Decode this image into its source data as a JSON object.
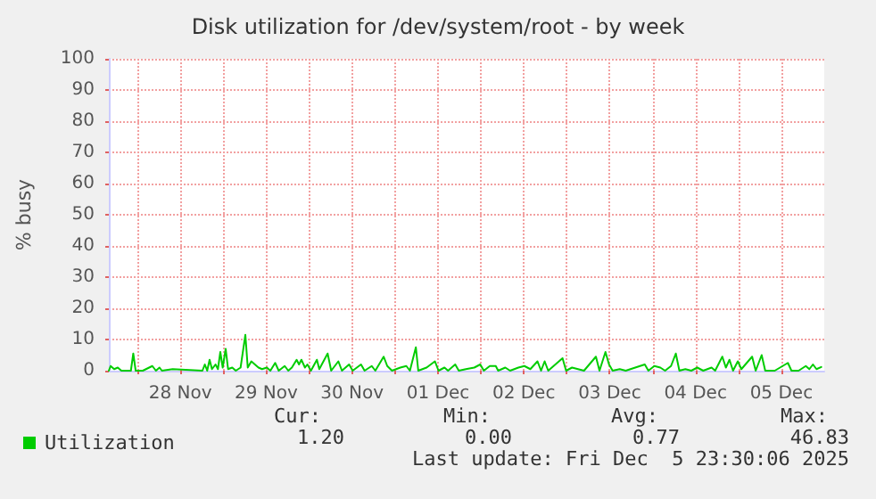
{
  "chart_data": {
    "type": "line",
    "title": "Disk utilization for /dev/system/root - by week",
    "ylabel": "% busy",
    "x": [
      "2025-11-27T16:00",
      "2025-11-27T16:30",
      "2025-11-27T17:30",
      "2025-11-27T18:30",
      "2025-11-27T19:30",
      "2025-11-27T22:10",
      "2025-11-27T22:50",
      "2025-11-27T23:30",
      "2025-11-28T01:30",
      "2025-11-28T04:10",
      "2025-11-28T05:10",
      "2025-11-28T06:10",
      "2025-11-28T06:50",
      "2025-11-28T09:50",
      "2025-11-28T18:10",
      "2025-11-28T18:50",
      "2025-11-28T19:30",
      "2025-11-28T20:10",
      "2025-11-28T20:50",
      "2025-11-28T21:50",
      "2025-11-28T22:30",
      "2025-11-28T23:10",
      "2025-11-28T23:50",
      "2025-11-29T00:40",
      "2025-11-29T01:20",
      "2025-11-29T02:30",
      "2025-11-29T03:30",
      "2025-11-29T04:50",
      "2025-11-29T06:10",
      "2025-11-29T06:50",
      "2025-11-29T07:50",
      "2025-11-29T08:50",
      "2025-11-29T09:50",
      "2025-11-29T10:50",
      "2025-11-29T12:10",
      "2025-11-29T13:10",
      "2025-11-29T14:30",
      "2025-11-29T15:30",
      "2025-11-29T17:10",
      "2025-11-29T18:10",
      "2025-11-29T19:10",
      "2025-11-29T20:30",
      "2025-11-29T21:10",
      "2025-11-29T21:50",
      "2025-11-29T22:50",
      "2025-11-29T23:30",
      "2025-11-30T00:30",
      "2025-11-30T02:10",
      "2025-11-30T02:50",
      "2025-11-30T05:10",
      "2025-11-30T06:10",
      "2025-11-30T08:10",
      "2025-11-30T09:10",
      "2025-11-30T11:10",
      "2025-11-30T12:10",
      "2025-11-30T14:30",
      "2025-11-30T15:30",
      "2025-11-30T17:30",
      "2025-11-30T18:30",
      "2025-11-30T20:50",
      "2025-11-30T21:50",
      "2025-11-30T23:10",
      "2025-12-01T01:30",
      "2025-12-01T03:10",
      "2025-12-01T04:10",
      "2025-12-01T05:50",
      "2025-12-01T06:30",
      "2025-12-01T08:50",
      "2025-12-01T11:10",
      "2025-12-01T12:10",
      "2025-12-01T13:50",
      "2025-12-01T14:50",
      "2025-12-01T16:50",
      "2025-12-01T17:50",
      "2025-12-01T19:50",
      "2025-12-01T22:10",
      "2025-12-01T23:50",
      "2025-12-02T00:50",
      "2025-12-02T02:30",
      "2025-12-02T04:10",
      "2025-12-02T04:50",
      "2025-12-02T06:50",
      "2025-12-02T08:10",
      "2025-12-02T10:30",
      "2025-12-02T12:10",
      "2025-12-02T13:50",
      "2025-12-02T15:50",
      "2025-12-02T16:50",
      "2025-12-02T17:50",
      "2025-12-02T18:50",
      "2025-12-02T22:50",
      "2025-12-02T23:50",
      "2025-12-03T01:30",
      "2025-12-03T03:10",
      "2025-12-03T04:50",
      "2025-12-03T08:10",
      "2025-12-03T09:10",
      "2025-12-03T10:50",
      "2025-12-03T11:50",
      "2025-12-03T12:50",
      "2025-12-03T14:50",
      "2025-12-03T16:30",
      "2025-12-03T21:50",
      "2025-12-03T22:50",
      "2025-12-04T00:30",
      "2025-12-04T02:10",
      "2025-12-04T03:30",
      "2025-12-04T05:10",
      "2025-12-04T06:30",
      "2025-12-04T07:30",
      "2025-12-04T09:10",
      "2025-12-04T10:50",
      "2025-12-04T12:30",
      "2025-12-04T14:10",
      "2025-12-04T16:30",
      "2025-12-04T17:30",
      "2025-12-04T19:30",
      "2025-12-04T20:30",
      "2025-12-04T21:30",
      "2025-12-04T22:30",
      "2025-12-04T23:50",
      "2025-12-05T00:50",
      "2025-12-05T03:50",
      "2025-12-05T04:50",
      "2025-12-05T06:30",
      "2025-12-05T07:30",
      "2025-12-05T10:10",
      "2025-12-05T13:50",
      "2025-12-05T14:50",
      "2025-12-05T16:50",
      "2025-12-05T18:50",
      "2025-12-05T19:50",
      "2025-12-05T20:50",
      "2025-12-05T21:50",
      "2025-12-05T23:10"
    ],
    "series": [
      {
        "name": "Utilization",
        "color": "#00cc00",
        "values": [
          0,
          1.5,
          0.5,
          1,
          0,
          0,
          5.5,
          0,
          0,
          1.5,
          0,
          1,
          0,
          0.5,
          0,
          2,
          0,
          3.5,
          0.5,
          2,
          0.5,
          6,
          1,
          7,
          0.5,
          1,
          0,
          1,
          11.5,
          1,
          3,
          2,
          1,
          0.5,
          1,
          0,
          2.5,
          0,
          1.5,
          0,
          1,
          3.5,
          2,
          3.5,
          1,
          2,
          0,
          3.5,
          0.5,
          5.5,
          0,
          3,
          0,
          2,
          0,
          2,
          0,
          1.5,
          0,
          4.5,
          1.5,
          0,
          1,
          1.5,
          0,
          7.5,
          0,
          1,
          3,
          0,
          1,
          0,
          2,
          0,
          0.5,
          1,
          2,
          0,
          1.5,
          1.5,
          0,
          1,
          0,
          1,
          1.5,
          0.5,
          3,
          0,
          3,
          0,
          4,
          0,
          1,
          0.5,
          0,
          4.5,
          0,
          6,
          2,
          0,
          0.5,
          0,
          2,
          0,
          1.5,
          1,
          0,
          1.5,
          5.5,
          0,
          0.5,
          0,
          1,
          0,
          1,
          0,
          4.5,
          1,
          3.5,
          0,
          3,
          0.5,
          4.5,
          0,
          5,
          0,
          0,
          2.5,
          0,
          0,
          1.5,
          0.5,
          2,
          0.5,
          1.2
        ]
      }
    ],
    "xlim": [
      "2025-11-27T16:00",
      "2025-12-06T00:00"
    ],
    "xticks": [
      {
        "value": "2025-11-28T00:00",
        "label": null
      },
      {
        "value": "2025-11-28T12:00",
        "label": "28 Nov"
      },
      {
        "value": "2025-11-29T00:00",
        "label": null
      },
      {
        "value": "2025-11-29T12:00",
        "label": "29 Nov"
      },
      {
        "value": "2025-11-30T00:00",
        "label": null
      },
      {
        "value": "2025-11-30T12:00",
        "label": "30 Nov"
      },
      {
        "value": "2025-12-01T00:00",
        "label": null
      },
      {
        "value": "2025-12-01T12:00",
        "label": "01 Dec"
      },
      {
        "value": "2025-12-02T00:00",
        "label": null
      },
      {
        "value": "2025-12-02T12:00",
        "label": "02 Dec"
      },
      {
        "value": "2025-12-03T00:00",
        "label": null
      },
      {
        "value": "2025-12-03T12:00",
        "label": "03 Dec"
      },
      {
        "value": "2025-12-04T00:00",
        "label": null
      },
      {
        "value": "2025-12-04T12:00",
        "label": "04 Dec"
      },
      {
        "value": "2025-12-05T00:00",
        "label": null
      },
      {
        "value": "2025-12-05T12:00",
        "label": "05 Dec"
      }
    ],
    "ylim": [
      0,
      100
    ],
    "yticks": [
      0,
      10,
      20,
      30,
      40,
      50,
      60,
      70,
      80,
      90,
      100
    ],
    "grid": true,
    "legend": "bottom left",
    "marker": "none",
    "line_style": "solid",
    "annotations": [
      "Cur:",
      "Min:",
      "Avg:",
      "Max:",
      "1.20",
      "0.00",
      "0.77",
      "46.83",
      "Last update: Fri Dec  5 23:30:06 2025"
    ]
  }
}
